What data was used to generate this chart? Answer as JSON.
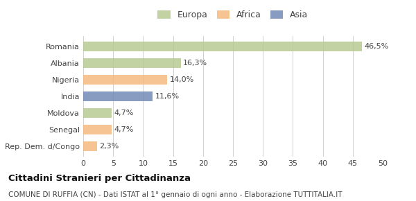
{
  "categories": [
    "Romania",
    "Albania",
    "Nigeria",
    "India",
    "Moldova",
    "Senegal",
    "Rep. Dem. d/Congo"
  ],
  "values": [
    46.5,
    16.3,
    14.0,
    11.6,
    4.7,
    4.7,
    2.3
  ],
  "labels": [
    "46,5%",
    "16,3%",
    "14,0%",
    "11,6%",
    "4,7%",
    "4,7%",
    "2,3%"
  ],
  "bar_colors": [
    "#b5c98e",
    "#b5c98e",
    "#f5b87a",
    "#6e87b5",
    "#b5c98e",
    "#f5b87a",
    "#f5b87a"
  ],
  "legend": [
    {
      "label": "Europa",
      "color": "#b5c98e"
    },
    {
      "label": "Africa",
      "color": "#f5b87a"
    },
    {
      "label": "Asia",
      "color": "#6e87b5"
    }
  ],
  "xlim": [
    0,
    50
  ],
  "xticks": [
    0,
    5,
    10,
    15,
    20,
    25,
    30,
    35,
    40,
    45,
    50
  ],
  "title": "Cittadini Stranieri per Cittadinanza",
  "subtitle": "COMUNE DI RUFFIA (CN) - Dati ISTAT al 1° gennaio di ogni anno - Elaborazione TUTTITALIA.IT",
  "bg_color": "#ffffff",
  "grid_color": "#d0d0d0",
  "bar_alpha": 0.82
}
